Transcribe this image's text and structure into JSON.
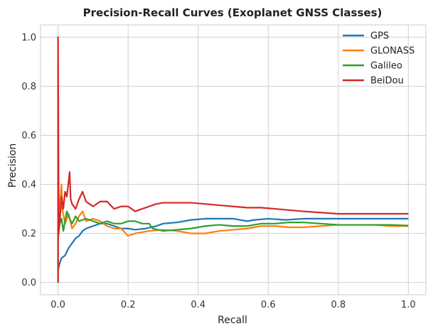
{
  "chart_data": {
    "type": "line",
    "title": "Precision-Recall Curves (Exoplanet GNSS Classes)",
    "xlabel": "Recall",
    "ylabel": "Precision",
    "xlim": [
      -0.05,
      1.05
    ],
    "ylim": [
      -0.05,
      1.05
    ],
    "xticks": [
      0.0,
      0.2,
      0.4,
      0.6,
      0.8,
      1.0
    ],
    "yticks": [
      0.0,
      0.2,
      0.4,
      0.6,
      0.8,
      1.0
    ],
    "xtick_labels": [
      "0.0",
      "0.2",
      "0.4",
      "0.6",
      "0.8",
      "1.0"
    ],
    "ytick_labels": [
      "0.0",
      "0.2",
      "0.4",
      "0.6",
      "0.8",
      "1.0"
    ],
    "grid": true,
    "legend_position": "top-right",
    "series": [
      {
        "name": "GPS",
        "color": "#1f77b4",
        "points": [
          [
            0,
            0
          ],
          [
            0,
            0.05
          ],
          [
            0.005,
            0.08
          ],
          [
            0.01,
            0.1
          ],
          [
            0.02,
            0.11
          ],
          [
            0.03,
            0.14
          ],
          [
            0.04,
            0.16
          ],
          [
            0.05,
            0.18
          ],
          [
            0.06,
            0.19
          ],
          [
            0.07,
            0.21
          ],
          [
            0.08,
            0.22
          ],
          [
            0.1,
            0.23
          ],
          [
            0.12,
            0.24
          ],
          [
            0.14,
            0.24
          ],
          [
            0.16,
            0.23
          ],
          [
            0.18,
            0.22
          ],
          [
            0.2,
            0.22
          ],
          [
            0.22,
            0.215
          ],
          [
            0.25,
            0.22
          ],
          [
            0.28,
            0.23
          ],
          [
            0.3,
            0.24
          ],
          [
            0.34,
            0.245
          ],
          [
            0.38,
            0.255
          ],
          [
            0.42,
            0.26
          ],
          [
            0.48,
            0.26
          ],
          [
            0.5,
            0.26
          ],
          [
            0.54,
            0.25
          ],
          [
            0.56,
            0.255
          ],
          [
            0.6,
            0.26
          ],
          [
            0.65,
            0.255
          ],
          [
            0.7,
            0.26
          ],
          [
            0.75,
            0.26
          ],
          [
            0.8,
            0.26
          ],
          [
            0.85,
            0.26
          ],
          [
            0.9,
            0.26
          ],
          [
            0.95,
            0.26
          ],
          [
            1.0,
            0.26
          ]
        ]
      },
      {
        "name": "GLONASS",
        "color": "#ff7f0e",
        "points": [
          [
            0,
            0
          ],
          [
            0,
            0.15
          ],
          [
            0.005,
            0.32
          ],
          [
            0.01,
            0.4
          ],
          [
            0.012,
            0.3
          ],
          [
            0.02,
            0.24
          ],
          [
            0.03,
            0.28
          ],
          [
            0.04,
            0.22
          ],
          [
            0.05,
            0.24
          ],
          [
            0.06,
            0.27
          ],
          [
            0.07,
            0.29
          ],
          [
            0.08,
            0.25
          ],
          [
            0.1,
            0.26
          ],
          [
            0.12,
            0.25
          ],
          [
            0.14,
            0.23
          ],
          [
            0.16,
            0.22
          ],
          [
            0.18,
            0.22
          ],
          [
            0.2,
            0.19
          ],
          [
            0.22,
            0.2
          ],
          [
            0.26,
            0.21
          ],
          [
            0.3,
            0.215
          ],
          [
            0.34,
            0.21
          ],
          [
            0.38,
            0.2
          ],
          [
            0.42,
            0.2
          ],
          [
            0.46,
            0.21
          ],
          [
            0.5,
            0.215
          ],
          [
            0.54,
            0.22
          ],
          [
            0.58,
            0.23
          ],
          [
            0.62,
            0.23
          ],
          [
            0.66,
            0.225
          ],
          [
            0.7,
            0.225
          ],
          [
            0.75,
            0.23
          ],
          [
            0.8,
            0.235
          ],
          [
            0.85,
            0.235
          ],
          [
            0.9,
            0.235
          ],
          [
            0.95,
            0.23
          ],
          [
            1.0,
            0.23
          ]
        ]
      },
      {
        "name": "Galileo",
        "color": "#2ca02c",
        "points": [
          [
            0,
            0
          ],
          [
            0,
            0.2
          ],
          [
            0.005,
            0.24
          ],
          [
            0.01,
            0.26
          ],
          [
            0.015,
            0.21
          ],
          [
            0.02,
            0.25
          ],
          [
            0.025,
            0.29
          ],
          [
            0.03,
            0.27
          ],
          [
            0.04,
            0.24
          ],
          [
            0.05,
            0.27
          ],
          [
            0.06,
            0.25
          ],
          [
            0.08,
            0.26
          ],
          [
            0.1,
            0.25
          ],
          [
            0.12,
            0.24
          ],
          [
            0.14,
            0.25
          ],
          [
            0.16,
            0.24
          ],
          [
            0.18,
            0.24
          ],
          [
            0.2,
            0.25
          ],
          [
            0.22,
            0.25
          ],
          [
            0.24,
            0.24
          ],
          [
            0.26,
            0.24
          ],
          [
            0.27,
            0.22
          ],
          [
            0.3,
            0.21
          ],
          [
            0.34,
            0.215
          ],
          [
            0.38,
            0.22
          ],
          [
            0.42,
            0.23
          ],
          [
            0.46,
            0.235
          ],
          [
            0.5,
            0.23
          ],
          [
            0.54,
            0.23
          ],
          [
            0.58,
            0.24
          ],
          [
            0.62,
            0.24
          ],
          [
            0.66,
            0.245
          ],
          [
            0.7,
            0.245
          ],
          [
            0.75,
            0.24
          ],
          [
            0.8,
            0.235
          ],
          [
            0.85,
            0.235
          ],
          [
            0.9,
            0.235
          ],
          [
            0.95,
            0.235
          ],
          [
            1.0,
            0.232
          ]
        ]
      },
      {
        "name": "BeiDou",
        "color": "#d62728",
        "points": [
          [
            0,
            0
          ],
          [
            0,
            1.0
          ],
          [
            0.002,
            0.2
          ],
          [
            0.005,
            0.25
          ],
          [
            0.01,
            0.35
          ],
          [
            0.015,
            0.3
          ],
          [
            0.02,
            0.37
          ],
          [
            0.025,
            0.35
          ],
          [
            0.03,
            0.41
          ],
          [
            0.033,
            0.45
          ],
          [
            0.036,
            0.34
          ],
          [
            0.04,
            0.32
          ],
          [
            0.05,
            0.3
          ],
          [
            0.06,
            0.34
          ],
          [
            0.07,
            0.37
          ],
          [
            0.08,
            0.33
          ],
          [
            0.1,
            0.31
          ],
          [
            0.12,
            0.33
          ],
          [
            0.14,
            0.33
          ],
          [
            0.16,
            0.3
          ],
          [
            0.18,
            0.31
          ],
          [
            0.2,
            0.31
          ],
          [
            0.22,
            0.29
          ],
          [
            0.24,
            0.3
          ],
          [
            0.26,
            0.31
          ],
          [
            0.28,
            0.32
          ],
          [
            0.3,
            0.325
          ],
          [
            0.34,
            0.325
          ],
          [
            0.38,
            0.325
          ],
          [
            0.42,
            0.32
          ],
          [
            0.46,
            0.315
          ],
          [
            0.5,
            0.31
          ],
          [
            0.54,
            0.305
          ],
          [
            0.58,
            0.305
          ],
          [
            0.62,
            0.3
          ],
          [
            0.66,
            0.295
          ],
          [
            0.7,
            0.29
          ],
          [
            0.75,
            0.285
          ],
          [
            0.8,
            0.28
          ],
          [
            0.85,
            0.28
          ],
          [
            0.9,
            0.28
          ],
          [
            0.95,
            0.28
          ],
          [
            1.0,
            0.28
          ]
        ]
      }
    ]
  }
}
